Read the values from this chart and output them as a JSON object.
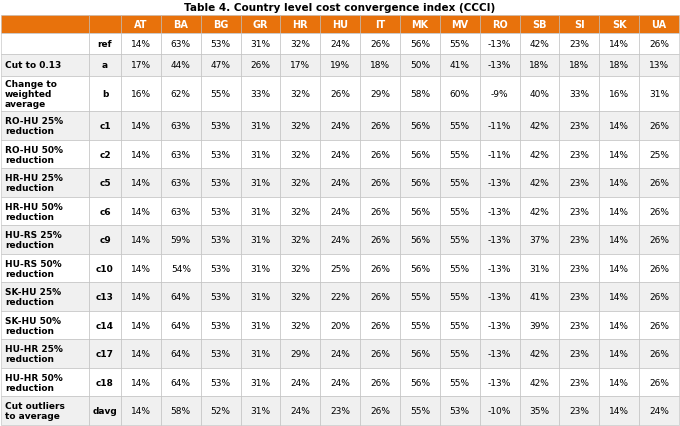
{
  "title": "Table 4. Country level cost convergence index (CCCI)",
  "col_headers": [
    "AT",
    "BA",
    "BG",
    "GR",
    "HR",
    "HU",
    "IT",
    "MK",
    "MV",
    "RO",
    "SB",
    "SI",
    "SK",
    "UA"
  ],
  "row_labels": [
    [
      "",
      "ref"
    ],
    [
      "Cut to 0.13",
      "a"
    ],
    [
      "Change to\nweighted\naverage",
      "b"
    ],
    [
      "RO-HU 25%\nreduction",
      "c1"
    ],
    [
      "RO-HU 50%\nreduction",
      "c2"
    ],
    [
      "HR-HU 25%\nreduction",
      "c5"
    ],
    [
      "HR-HU 50%\nreduction",
      "c6"
    ],
    [
      "HU-RS 25%\nreduction",
      "c9"
    ],
    [
      "HU-RS 50%\nreduction",
      "c10"
    ],
    [
      "SK-HU 25%\nreduction",
      "c13"
    ],
    [
      "SK-HU 50%\nreduction",
      "c14"
    ],
    [
      "HU-HR 25%\nreduction",
      "c17"
    ],
    [
      "HU-HR 50%\nreduction",
      "c18"
    ],
    [
      "Cut outliers\nto average",
      "davg"
    ]
  ],
  "data": [
    [
      "14%",
      "63%",
      "53%",
      "31%",
      "32%",
      "24%",
      "26%",
      "56%",
      "55%",
      "-13%",
      "42%",
      "23%",
      "14%",
      "26%"
    ],
    [
      "17%",
      "44%",
      "47%",
      "26%",
      "17%",
      "19%",
      "18%",
      "50%",
      "41%",
      "-13%",
      "18%",
      "18%",
      "18%",
      "13%"
    ],
    [
      "16%",
      "62%",
      "55%",
      "33%",
      "32%",
      "26%",
      "29%",
      "58%",
      "60%",
      "-9%",
      "40%",
      "33%",
      "16%",
      "31%"
    ],
    [
      "14%",
      "63%",
      "53%",
      "31%",
      "32%",
      "24%",
      "26%",
      "56%",
      "55%",
      "-11%",
      "42%",
      "23%",
      "14%",
      "26%"
    ],
    [
      "14%",
      "63%",
      "53%",
      "31%",
      "32%",
      "24%",
      "26%",
      "56%",
      "55%",
      "-11%",
      "42%",
      "23%",
      "14%",
      "25%"
    ],
    [
      "14%",
      "63%",
      "53%",
      "31%",
      "32%",
      "24%",
      "26%",
      "56%",
      "55%",
      "-13%",
      "42%",
      "23%",
      "14%",
      "26%"
    ],
    [
      "14%",
      "63%",
      "53%",
      "31%",
      "32%",
      "24%",
      "26%",
      "56%",
      "55%",
      "-13%",
      "42%",
      "23%",
      "14%",
      "26%"
    ],
    [
      "14%",
      "59%",
      "53%",
      "31%",
      "32%",
      "24%",
      "26%",
      "56%",
      "55%",
      "-13%",
      "37%",
      "23%",
      "14%",
      "26%"
    ],
    [
      "14%",
      "54%",
      "53%",
      "31%",
      "32%",
      "25%",
      "26%",
      "56%",
      "55%",
      "-13%",
      "31%",
      "23%",
      "14%",
      "26%"
    ],
    [
      "14%",
      "64%",
      "53%",
      "31%",
      "32%",
      "22%",
      "26%",
      "55%",
      "55%",
      "-13%",
      "41%",
      "23%",
      "14%",
      "26%"
    ],
    [
      "14%",
      "64%",
      "53%",
      "31%",
      "32%",
      "20%",
      "26%",
      "55%",
      "55%",
      "-13%",
      "39%",
      "23%",
      "14%",
      "26%"
    ],
    [
      "14%",
      "64%",
      "53%",
      "31%",
      "29%",
      "24%",
      "26%",
      "56%",
      "55%",
      "-13%",
      "42%",
      "23%",
      "14%",
      "26%"
    ],
    [
      "14%",
      "64%",
      "53%",
      "31%",
      "24%",
      "24%",
      "26%",
      "56%",
      "55%",
      "-13%",
      "42%",
      "23%",
      "14%",
      "26%"
    ],
    [
      "14%",
      "58%",
      "52%",
      "31%",
      "24%",
      "23%",
      "26%",
      "55%",
      "53%",
      "-10%",
      "35%",
      "23%",
      "14%",
      "24%"
    ]
  ],
  "header_bg": "#E8720C",
  "header_fg": "#FFFFFF",
  "row_alt_colors": [
    "#FFFFFF",
    "#F0F0F0"
  ],
  "border_color": "#BBBBBB",
  "text_color": "#000000",
  "title_fontsize": 7.5,
  "header_fontsize": 7.0,
  "data_fontsize": 6.5,
  "label_fontsize": 6.5
}
